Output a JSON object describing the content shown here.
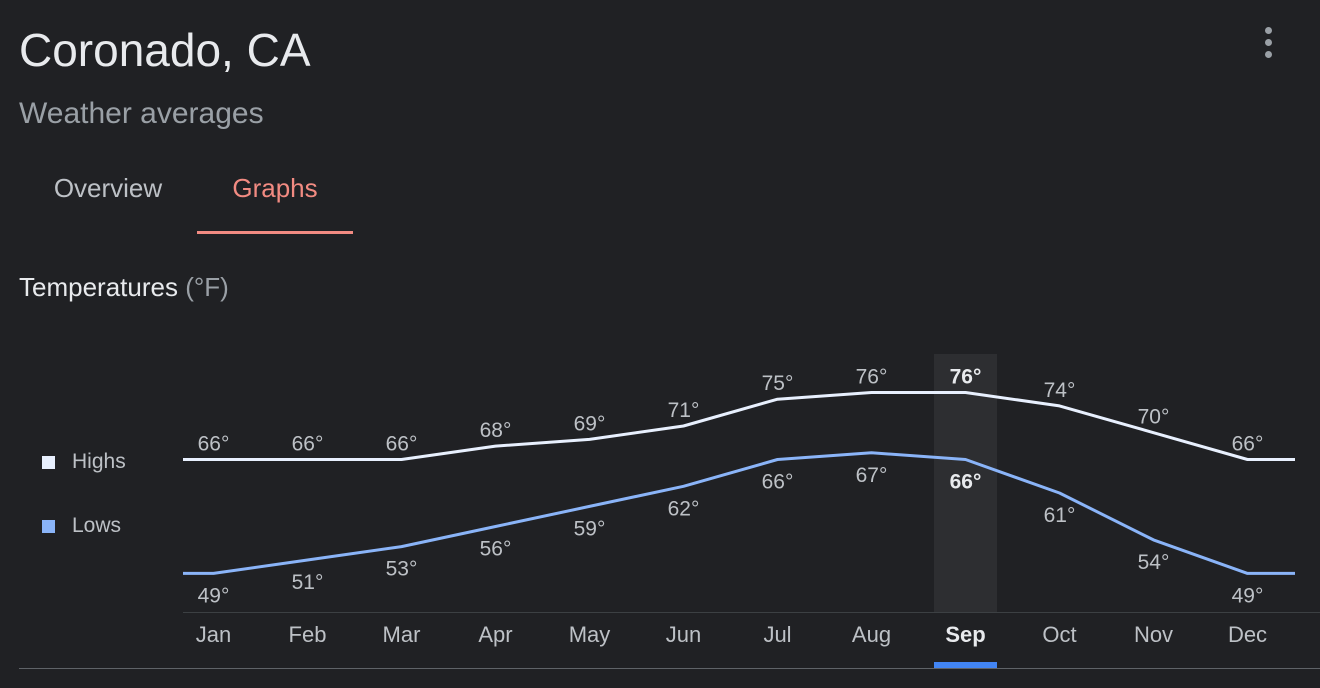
{
  "header": {
    "title": "Coronado, CA",
    "subtitle": "Weather averages",
    "more_icon": "more-vert-icon"
  },
  "tabs": [
    {
      "label": "Overview",
      "active": false
    },
    {
      "label": "Graphs",
      "active": true
    }
  ],
  "section": {
    "title": "Temperatures",
    "unit": "(°F)"
  },
  "colors": {
    "background": "#202124",
    "highs": "#e8f0fe",
    "lows": "#8ab4f8",
    "accent": "#f28b82",
    "selected_marker": "#4285f4"
  },
  "selected_month": "Sep",
  "chart_data": {
    "type": "line",
    "title": "Temperatures (°F)",
    "categories": [
      "Jan",
      "Feb",
      "Mar",
      "Apr",
      "May",
      "Jun",
      "Jul",
      "Aug",
      "Sep",
      "Oct",
      "Nov",
      "Dec"
    ],
    "series": [
      {
        "name": "Highs",
        "values": [
          66,
          66,
          66,
          68,
          69,
          71,
          75,
          76,
          76,
          74,
          70,
          66
        ],
        "labels": [
          "66°",
          "66°",
          "66°",
          "68°",
          "69°",
          "71°",
          "75°",
          "76°",
          "76°",
          "74°",
          "70°",
          "66°"
        ]
      },
      {
        "name": "Lows",
        "values": [
          49,
          51,
          53,
          56,
          59,
          62,
          66,
          67,
          66,
          61,
          54,
          49
        ],
        "labels": [
          "49°",
          "51°",
          "53°",
          "56°",
          "59°",
          "62°",
          "66°",
          "67°",
          "66°",
          "61°",
          "54°",
          "49°"
        ]
      }
    ],
    "legend": "left",
    "grid": false
  }
}
